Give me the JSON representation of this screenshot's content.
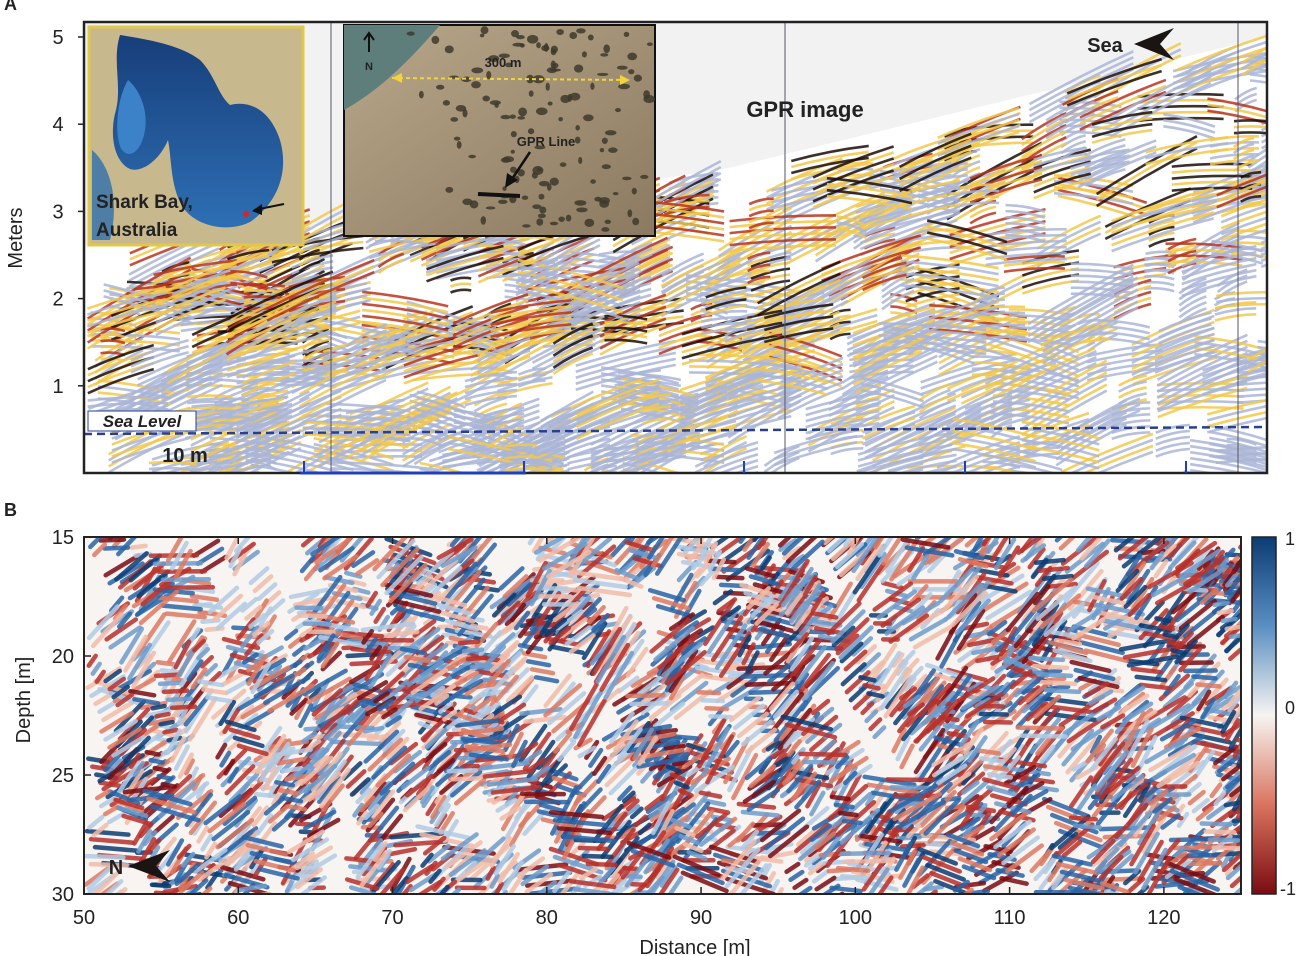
{
  "colors": {
    "blue": "#1f4e8c",
    "red": "#9b1b1b",
    "gpr_dark": "#1a0c06",
    "gpr_red": "#b8341c",
    "gpr_yellow": "#f2c84a",
    "gpr_blue": "#aab5d6",
    "sky": "#f2f2f2",
    "sea_level": "#2a3f8f"
  },
  "chart_data": [
    {
      "type": "heatmap",
      "panel_label": "A",
      "title": "GPR image",
      "ylabel": "Meters",
      "yticks": [
        1,
        2,
        3,
        4,
        5
      ],
      "ylim": [
        0,
        5.2
      ],
      "annotations": {
        "sea_level": "Sea Level",
        "scale_bar": "10 m",
        "direction": "Sea",
        "inset_left": "Shark Bay, Australia",
        "inset_right_distance": "300 m",
        "inset_right_line": "GPR Line",
        "inset_right_north": "N"
      },
      "surface_profile_m": [
        2.6,
        2.7,
        2.8,
        3.0,
        3.1,
        3.3,
        3.5,
        3.8,
        4.1,
        4.4,
        4.7,
        5.0
      ],
      "sea_level_m": 0.5
    },
    {
      "type": "heatmap",
      "panel_label": "B",
      "xlabel": "Distance [m]",
      "ylabel": "Depth [m]",
      "xticks": [
        50,
        60,
        70,
        80,
        90,
        100,
        110,
        120
      ],
      "yticks": [
        15,
        20,
        25,
        30
      ],
      "xlim": [
        50,
        125
      ],
      "ylim": [
        15,
        30
      ],
      "colorbar": {
        "ticks": [
          "1",
          "0",
          "-1"
        ],
        "range": [
          -1,
          1
        ],
        "colormap": "blue-white-red"
      },
      "annotations": {
        "direction": "N"
      }
    }
  ]
}
